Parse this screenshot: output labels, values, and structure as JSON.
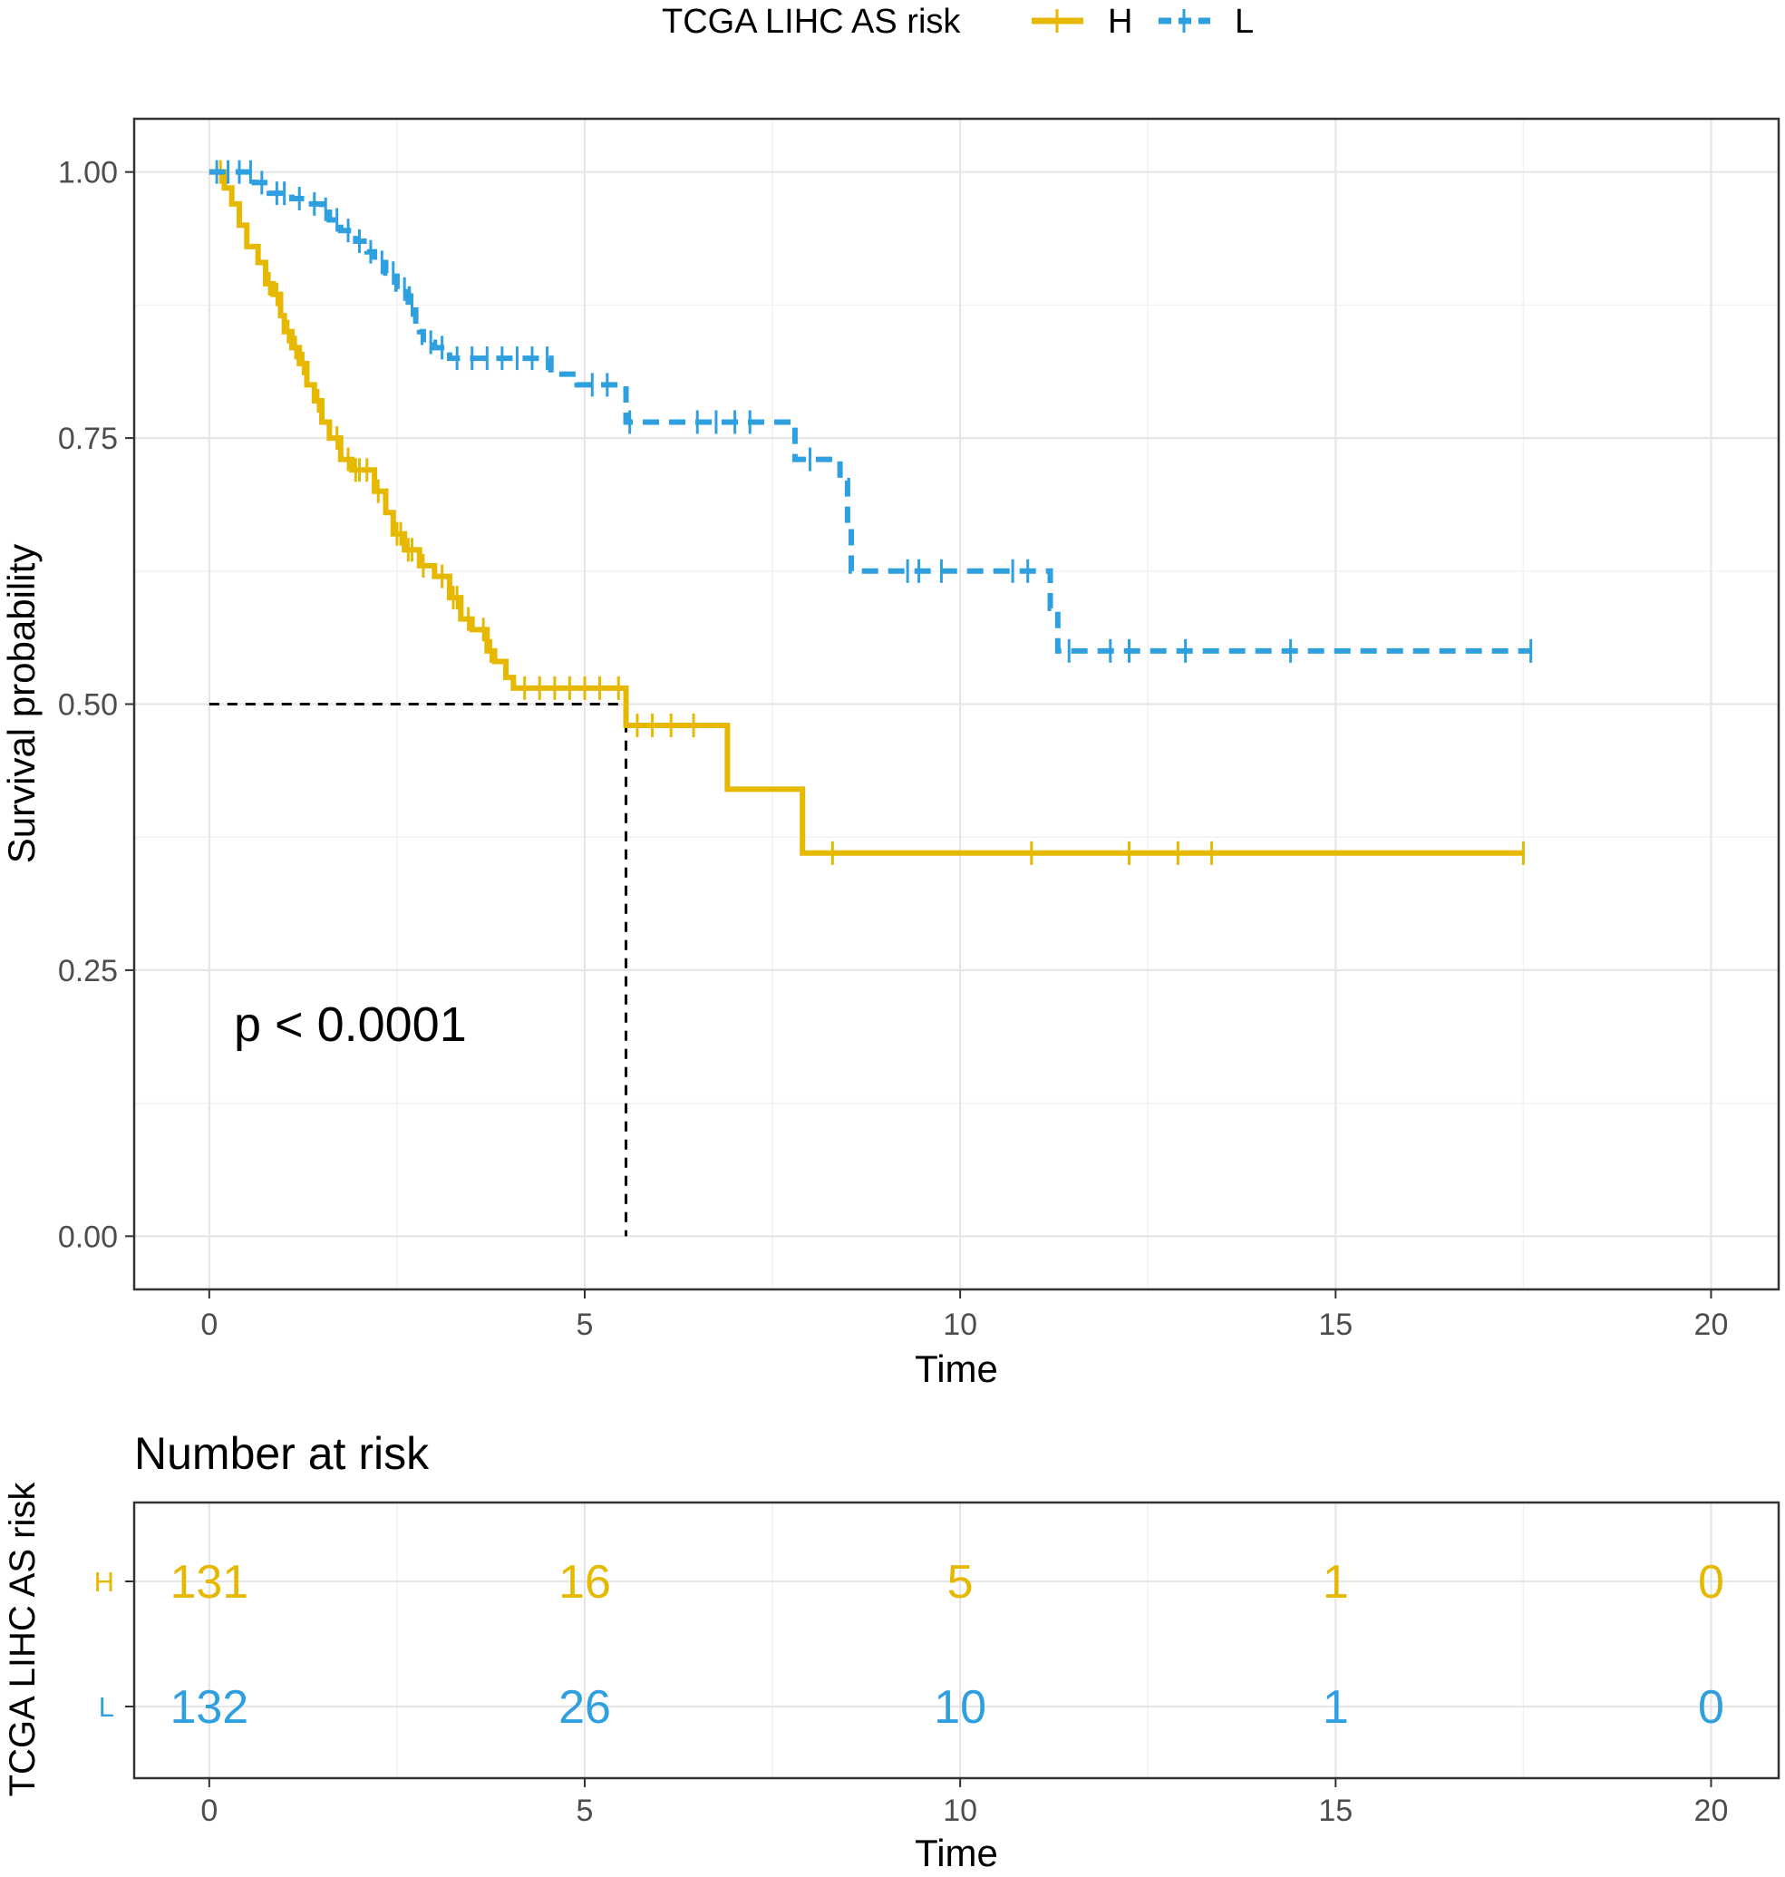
{
  "chart_data": [
    {
      "type": "line",
      "subtype": "kaplan-meier",
      "legend": {
        "title": "TCGA LIHC AS risk",
        "position": "top",
        "entries": [
          "H",
          "L"
        ]
      },
      "xlabel": "Time",
      "ylabel": "Survival probability",
      "xlim": [
        -1,
        20.9
      ],
      "ylim": [
        -0.05,
        1.05
      ],
      "x_ticks": [
        0,
        5,
        10,
        15,
        20
      ],
      "x_tick_labels": [
        "0",
        "5",
        "10",
        "15",
        "20"
      ],
      "y_ticks": [
        0,
        0.25,
        0.5,
        0.75,
        1.0
      ],
      "y_tick_labels": [
        "0.00",
        "0.25",
        "0.50",
        "0.75",
        "1.00"
      ],
      "grid": true,
      "annotation": "p < 0.0001",
      "median_survival": {
        "group": "H",
        "time": 5.55,
        "survival": 0.5
      },
      "series": [
        {
          "name": "H",
          "color": "#e7b800",
          "dash": "solid",
          "steps": [
            [
              0,
              1.0
            ],
            [
              0.2,
              0.985
            ],
            [
              0.3,
              0.97
            ],
            [
              0.4,
              0.95
            ],
            [
              0.5,
              0.93
            ],
            [
              0.65,
              0.915
            ],
            [
              0.75,
              0.895
            ],
            [
              0.85,
              0.885
            ],
            [
              0.95,
              0.865
            ],
            [
              1.0,
              0.85
            ],
            [
              1.1,
              0.835
            ],
            [
              1.2,
              0.82
            ],
            [
              1.3,
              0.8
            ],
            [
              1.4,
              0.785
            ],
            [
              1.5,
              0.765
            ],
            [
              1.6,
              0.75
            ],
            [
              1.75,
              0.73
            ],
            [
              1.9,
              0.72
            ],
            [
              2.2,
              0.7
            ],
            [
              2.35,
              0.68
            ],
            [
              2.45,
              0.66
            ],
            [
              2.6,
              0.645
            ],
            [
              2.8,
              0.63
            ],
            [
              3.0,
              0.62
            ],
            [
              3.2,
              0.6
            ],
            [
              3.35,
              0.58
            ],
            [
              3.5,
              0.57
            ],
            [
              3.7,
              0.55
            ],
            [
              3.8,
              0.54
            ],
            [
              3.95,
              0.525
            ],
            [
              4.05,
              0.515
            ],
            [
              5.55,
              0.48
            ],
            [
              6.9,
              0.42
            ],
            [
              7.9,
              0.36
            ],
            [
              17.5,
              0.36
            ]
          ],
          "censor_times": [
            0.15,
            0.8,
            0.9,
            1.05,
            1.15,
            1.25,
            1.45,
            1.7,
            1.85,
            1.95,
            2.0,
            2.1,
            2.25,
            2.5,
            2.55,
            2.65,
            2.7,
            2.85,
            3.1,
            3.25,
            3.3,
            3.45,
            3.65,
            3.75,
            4.2,
            4.4,
            4.6,
            4.8,
            5.0,
            5.2,
            5.45,
            5.7,
            5.9,
            6.15,
            6.45,
            8.3,
            10.95,
            12.25,
            12.9,
            13.35,
            17.5
          ],
          "at_risk": [
            131,
            16,
            5,
            1,
            0
          ]
        },
        {
          "name": "L",
          "color": "#2e9fdf",
          "dash": "dashed",
          "steps": [
            [
              0,
              1.0
            ],
            [
              0.6,
              0.99
            ],
            [
              0.8,
              0.98
            ],
            [
              1.1,
              0.975
            ],
            [
              1.3,
              0.97
            ],
            [
              1.5,
              0.965
            ],
            [
              1.6,
              0.955
            ],
            [
              1.75,
              0.945
            ],
            [
              1.95,
              0.935
            ],
            [
              2.1,
              0.925
            ],
            [
              2.2,
              0.915
            ],
            [
              2.35,
              0.905
            ],
            [
              2.5,
              0.89
            ],
            [
              2.65,
              0.875
            ],
            [
              2.75,
              0.86
            ],
            [
              2.8,
              0.85
            ],
            [
              2.85,
              0.84
            ],
            [
              3.0,
              0.835
            ],
            [
              3.2,
              0.825
            ],
            [
              4.55,
              0.81
            ],
            [
              4.9,
              0.8
            ],
            [
              5.55,
              0.765
            ],
            [
              7.8,
              0.73
            ],
            [
              8.4,
              0.71
            ],
            [
              8.5,
              0.67
            ],
            [
              8.55,
              0.625
            ],
            [
              11.2,
              0.59
            ],
            [
              11.3,
              0.55
            ],
            [
              17.6,
              0.55
            ]
          ],
          "censor_times": [
            0.1,
            0.25,
            0.4,
            0.55,
            0.7,
            0.9,
            1.0,
            1.2,
            1.4,
            1.55,
            1.7,
            1.85,
            2.0,
            2.15,
            2.3,
            2.45,
            2.6,
            2.7,
            2.95,
            3.1,
            3.3,
            3.5,
            3.7,
            3.9,
            4.1,
            4.3,
            4.5,
            5.1,
            5.3,
            5.6,
            6.5,
            6.75,
            7.0,
            7.2,
            8.0,
            9.3,
            9.45,
            9.75,
            10.7,
            10.9,
            11.45,
            12.0,
            12.25,
            13.0,
            14.4,
            17.6
          ],
          "at_risk": [
            132,
            26,
            10,
            1,
            0
          ]
        }
      ]
    },
    {
      "type": "table",
      "title": "Number at risk",
      "ylabel": "TCGA LIHC AS risk",
      "xlabel": "Time",
      "x_ticks": [
        0,
        5,
        10,
        15,
        20
      ],
      "x_tick_labels": [
        "0",
        "5",
        "10",
        "15",
        "20"
      ],
      "rows": [
        {
          "label": "H",
          "color": "#e7b800",
          "values": [
            "131",
            "16",
            "5",
            "1",
            "0"
          ]
        },
        {
          "label": "L",
          "color": "#2e9fdf",
          "values": [
            "132",
            "26",
            "10",
            "1",
            "0"
          ]
        }
      ]
    }
  ]
}
